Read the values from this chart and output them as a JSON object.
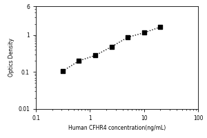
{
  "x_values": [
    0.313,
    0.625,
    1.25,
    2.5,
    5.0,
    10.0,
    20.0
  ],
  "y_values": [
    0.105,
    0.2,
    0.28,
    0.48,
    0.87,
    1.15,
    1.65
  ],
  "xlim": [
    0.1,
    100
  ],
  "ylim": [
    0.01,
    6
  ],
  "xlabel": "Human CFHR4 concentration(ng/mL)",
  "ylabel": "Optics Density",
  "marker": "s",
  "marker_color": "black",
  "marker_size": 4,
  "line_style": ":",
  "line_color": "black",
  "line_width": 1.0,
  "background_color": "#ffffff",
  "xlabel_fontsize": 5.5,
  "ylabel_fontsize": 5.5,
  "tick_fontsize": 5.5,
  "figsize": [
    3.0,
    2.0
  ],
  "dpi": 100
}
